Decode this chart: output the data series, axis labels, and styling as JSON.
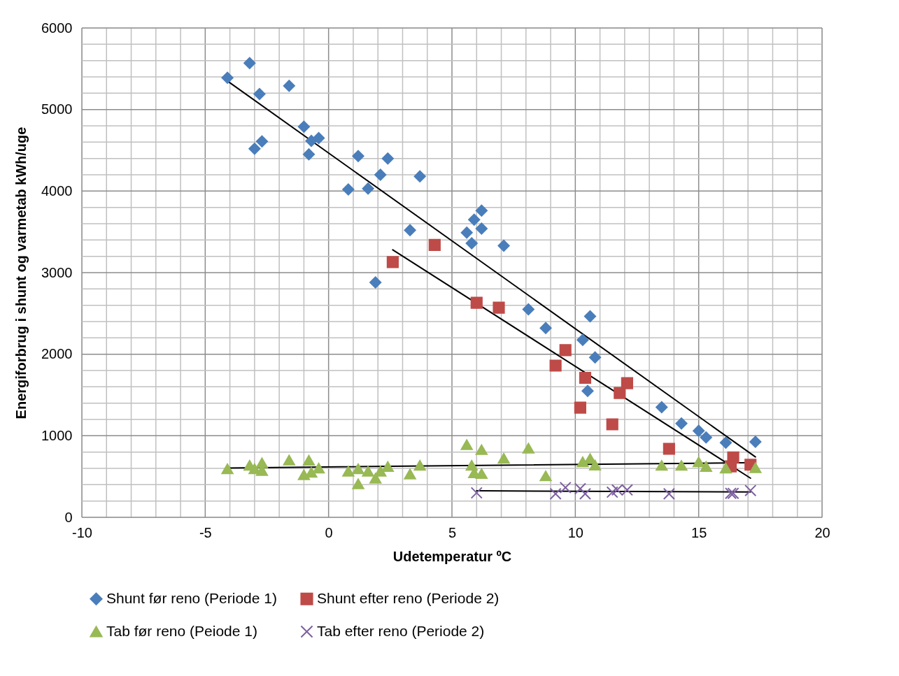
{
  "chart_data": {
    "type": "scatter",
    "xlabel": "Udetemperatur ºC",
    "ylabel": "Energiforbrug i shunt og varmetab kWh/uge",
    "xlim": [
      -10,
      20
    ],
    "ylim": [
      0,
      6000
    ],
    "xticks": [
      -10,
      {
        "value": -9,
        "label": null
      },
      {
        "value": -8,
        "label": null
      },
      {
        "value": -7,
        "label": null
      },
      {
        "value": -6,
        "label": null
      },
      -5,
      {
        "value": -4,
        "label": null
      },
      {
        "value": -3,
        "label": null
      },
      {
        "value": -2,
        "label": null
      },
      {
        "value": -1,
        "label": null
      },
      0,
      {
        "value": 1,
        "label": null
      },
      {
        "value": 2,
        "label": null
      },
      {
        "value": 3,
        "label": null
      },
      {
        "value": 4,
        "label": null
      },
      5,
      {
        "value": 6,
        "label": null
      },
      {
        "value": 7,
        "label": null
      },
      {
        "value": 8,
        "label": null
      },
      {
        "value": 9,
        "label": null
      },
      10,
      {
        "value": 11,
        "label": null
      },
      {
        "value": 12,
        "label": null
      },
      {
        "value": 13,
        "label": null
      },
      {
        "value": 14,
        "label": null
      },
      15,
      {
        "value": 16,
        "label": null
      },
      {
        "value": 17,
        "label": null
      },
      {
        "value": 18,
        "label": null
      },
      {
        "value": 19,
        "label": null
      },
      20
    ],
    "yticks": [
      0,
      {
        "value": 200,
        "label": null
      },
      {
        "value": 400,
        "label": null
      },
      {
        "value": 600,
        "label": null
      },
      {
        "value": 800,
        "label": null
      },
      1000,
      {
        "value": 1200,
        "label": null
      },
      {
        "value": 1400,
        "label": null
      },
      {
        "value": 1600,
        "label": null
      },
      {
        "value": 1800,
        "label": null
      },
      2000,
      {
        "value": 2200,
        "label": null
      },
      {
        "value": 2400,
        "label": null
      },
      {
        "value": 2600,
        "label": null
      },
      {
        "value": 2800,
        "label": null
      },
      3000,
      {
        "value": 3200,
        "label": null
      },
      {
        "value": 3400,
        "label": null
      },
      {
        "value": 3600,
        "label": null
      },
      {
        "value": 3800,
        "label": null
      },
      4000,
      {
        "value": 4200,
        "label": null
      },
      {
        "value": 4400,
        "label": null
      },
      {
        "value": 4600,
        "label": null
      },
      {
        "value": 4800,
        "label": null
      },
      5000,
      {
        "value": 5200,
        "label": null
      },
      {
        "value": 5400,
        "label": null
      },
      {
        "value": 5600,
        "label": null
      },
      {
        "value": 5800,
        "label": null
      },
      6000
    ],
    "grid": true,
    "legend": "bottom",
    "series": [
      {
        "name": "Shunt før reno (Periode 1)",
        "color": "#4a7ebb",
        "marker": "diamond",
        "x": [
          -4.1,
          -3.2,
          -2.8,
          -1.6,
          -3.0,
          -2.7,
          -1.0,
          -0.7,
          -0.4,
          -0.8,
          0.8,
          1.2,
          1.6,
          2.1,
          2.4,
          3.7,
          3.3,
          1.9,
          5.6,
          5.9,
          6.2,
          6.2,
          5.8,
          7.1,
          8.1,
          8.8,
          10.6,
          10.3,
          10.8,
          10.5,
          13.5,
          14.3,
          15.0,
          15.3,
          16.1,
          17.3
        ],
        "values": [
          5390,
          5570,
          5190,
          5290,
          4520,
          4610,
          4790,
          4615,
          4650,
          4450,
          4020,
          4430,
          4030,
          4200,
          4400,
          4180,
          3520,
          2880,
          3490,
          3650,
          3760,
          3540,
          3360,
          3330,
          2550,
          2320,
          2465,
          2175,
          1960,
          1550,
          1350,
          1150,
          1060,
          980,
          915,
          925
        ]
      },
      {
        "name": "Shunt efter reno (Periode 2)",
        "color": "#be4b48",
        "marker": "square",
        "x": [
          2.6,
          4.3,
          6.0,
          6.9,
          9.6,
          9.2,
          10.4,
          12.1,
          11.8,
          10.2,
          11.5,
          13.8,
          16.4,
          16.3,
          17.1
        ],
        "values": [
          3130,
          3340,
          2630,
          2570,
          2050,
          1860,
          1710,
          1645,
          1525,
          1345,
          1140,
          840,
          735,
          625,
          645
        ]
      },
      {
        "name": "Tab før reno (Peiode 1)",
        "color": "#98b954",
        "marker": "triangle",
        "x": [
          -4.1,
          -3.2,
          -3.0,
          -2.7,
          -2.7,
          -1.6,
          -0.8,
          -1.0,
          -0.7,
          -0.4,
          0.8,
          1.2,
          1.2,
          1.6,
          1.9,
          2.1,
          2.4,
          3.3,
          3.7,
          5.6,
          6.2,
          5.8,
          5.9,
          6.2,
          7.1,
          8.1,
          8.8,
          10.3,
          10.6,
          10.8,
          13.5,
          14.3,
          15.0,
          15.3,
          16.1,
          17.3
        ],
        "values": [
          595,
          637,
          595,
          668,
          573,
          702,
          700,
          522,
          551,
          603,
          565,
          595,
          410,
          565,
          479,
          565,
          622,
          530,
          637,
          890,
          829,
          637,
          544,
          536,
          723,
          847,
          508,
          680,
          720,
          640,
          636,
          636,
          679,
          622,
          602,
          608
        ]
      },
      {
        "name": "Tab efter reno (Periode 2)",
        "color": "#7d60a0",
        "marker": "cross",
        "x": [
          6.0,
          9.2,
          9.6,
          10.2,
          10.4,
          11.5,
          11.7,
          12.1,
          13.8,
          16.3,
          16.4,
          17.1
        ],
        "values": [
          300,
          288,
          365,
          351,
          288,
          308,
          336,
          336,
          288,
          294,
          294,
          328
        ]
      },
      {
        "type": "line",
        "color": "#000000",
        "x": [
          -4.1,
          17.3
        ],
        "values": [
          5350,
          740
        ]
      },
      {
        "type": "line",
        "color": "#000000",
        "x": [
          2.6,
          17.1
        ],
        "values": [
          3280,
          480
        ]
      },
      {
        "type": "line",
        "color": "#000000",
        "x": [
          -4.1,
          17.3
        ],
        "values": [
          605,
          670
        ]
      },
      {
        "type": "line",
        "color": "#000000",
        "x": [
          6.0,
          17.1
        ],
        "values": [
          325,
          310
        ]
      }
    ]
  }
}
